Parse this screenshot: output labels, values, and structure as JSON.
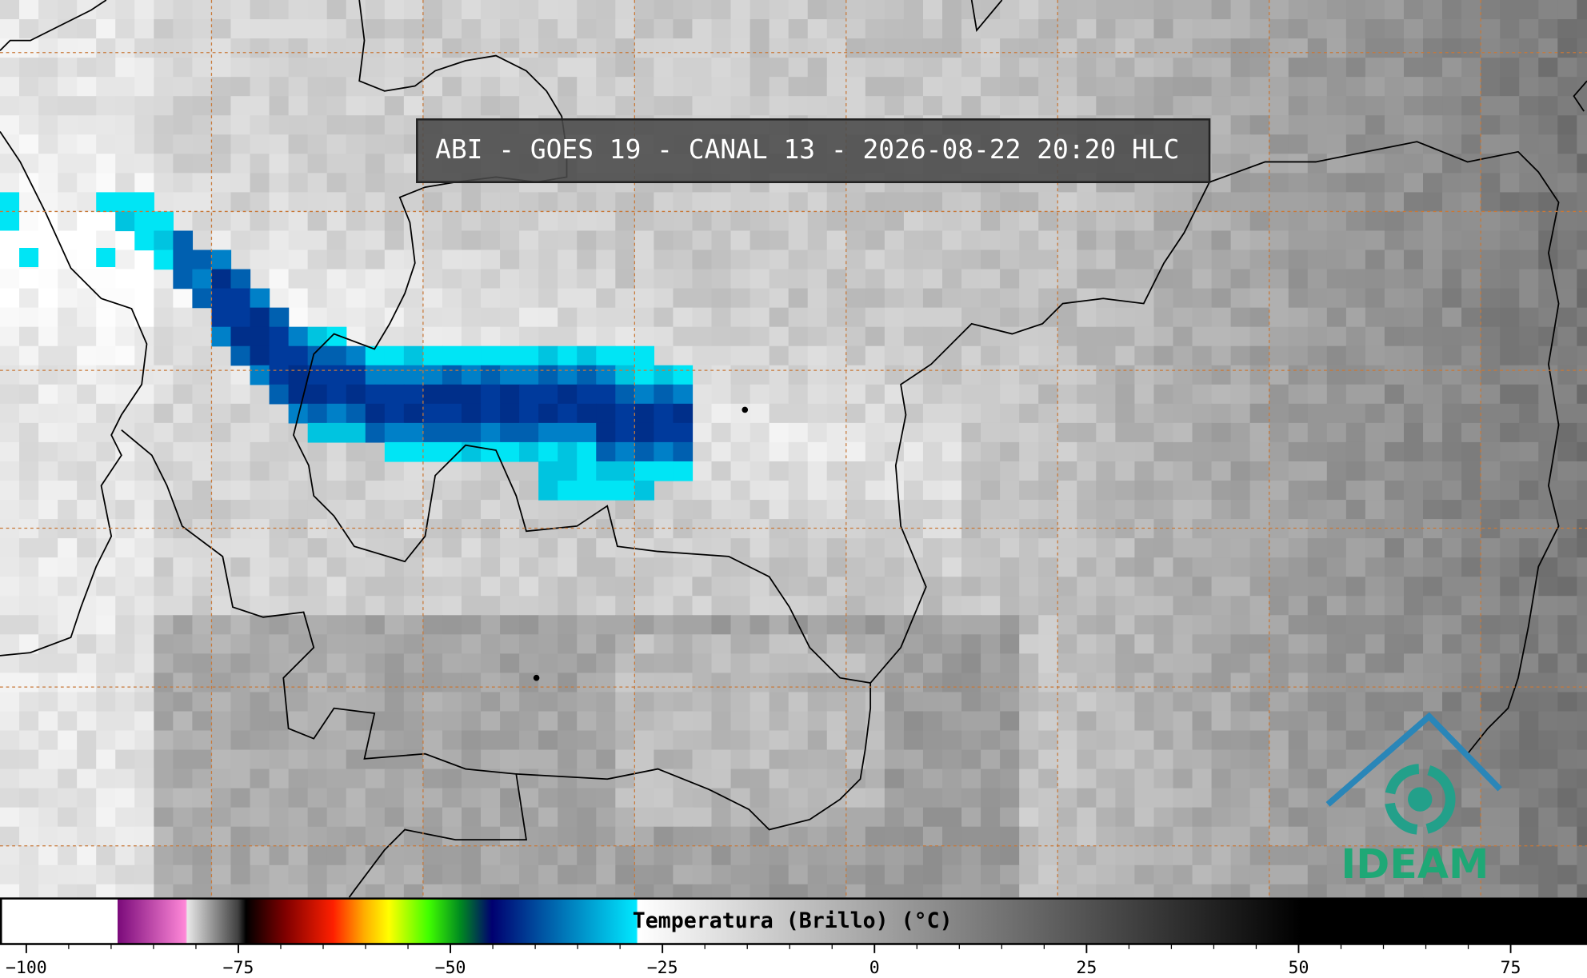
{
  "title": "ABI - GOES 19 - CANAL 13 - 2026-08-22 20:20 HLC",
  "logo": "IDEAM",
  "colorbar": {
    "label": "Temperatura (Brillo) (°C)",
    "lim": [
      -103.1,
      84.0
    ],
    "ticks": [
      {
        "value": -100,
        "label": "−100"
      },
      {
        "value": -75,
        "label": "−75"
      },
      {
        "value": -50,
        "label": "−50"
      },
      {
        "value": -25,
        "label": "−25"
      },
      0,
      25,
      50,
      75
    ]
  }
}
